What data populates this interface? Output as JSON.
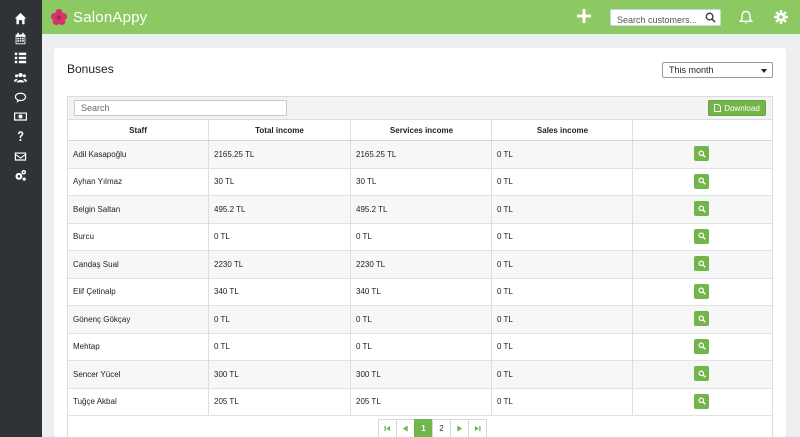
{
  "app": {
    "name": "SalonAppy",
    "brand_color": "#8cc963",
    "accent_color": "#72b54a"
  },
  "sidebar": {
    "items": [
      {
        "icon": "home-icon"
      },
      {
        "icon": "calendar-icon"
      },
      {
        "icon": "list-icon"
      },
      {
        "icon": "users-icon"
      },
      {
        "icon": "chat-icon"
      },
      {
        "icon": "money-icon"
      },
      {
        "icon": "help-icon"
      },
      {
        "icon": "mail-icon"
      },
      {
        "icon": "settings-icon"
      }
    ]
  },
  "header": {
    "search_placeholder": "Search customers..."
  },
  "page": {
    "title": "Bonuses",
    "period": "This month"
  },
  "table": {
    "search_placeholder": "Search",
    "download_label": "Download",
    "columns": [
      "Staff",
      "Total income",
      "Services income",
      "Sales income",
      ""
    ],
    "rows": [
      {
        "staff": "Adil Kasapoğlu",
        "total": "2165.25 TL",
        "services": "2165.25 TL",
        "sales": "0 TL"
      },
      {
        "staff": "Ayhan Yılmaz",
        "total": "30 TL",
        "services": "30 TL",
        "sales": "0 TL"
      },
      {
        "staff": "Belgin Saltan",
        "total": "495.2 TL",
        "services": "495.2 TL",
        "sales": "0 TL"
      },
      {
        "staff": "Burcu",
        "total": "0 TL",
        "services": "0 TL",
        "sales": "0 TL"
      },
      {
        "staff": "Candaş Sual",
        "total": "2230 TL",
        "services": "2230 TL",
        "sales": "0 TL"
      },
      {
        "staff": "Elif Çetinalp",
        "total": "340 TL",
        "services": "340 TL",
        "sales": "0 TL"
      },
      {
        "staff": "Gönenç Gökçay",
        "total": "0 TL",
        "services": "0 TL",
        "sales": "0 TL"
      },
      {
        "staff": "Mehtap",
        "total": "0 TL",
        "services": "0 TL",
        "sales": "0 TL"
      },
      {
        "staff": "Sencer Yücel",
        "total": "300 TL",
        "services": "300 TL",
        "sales": "0 TL"
      },
      {
        "staff": "Tuğçe Akbal",
        "total": "205 TL",
        "services": "205 TL",
        "sales": "0 TL"
      }
    ]
  },
  "pagination": {
    "pages": [
      "1",
      "2"
    ],
    "current": "1"
  }
}
